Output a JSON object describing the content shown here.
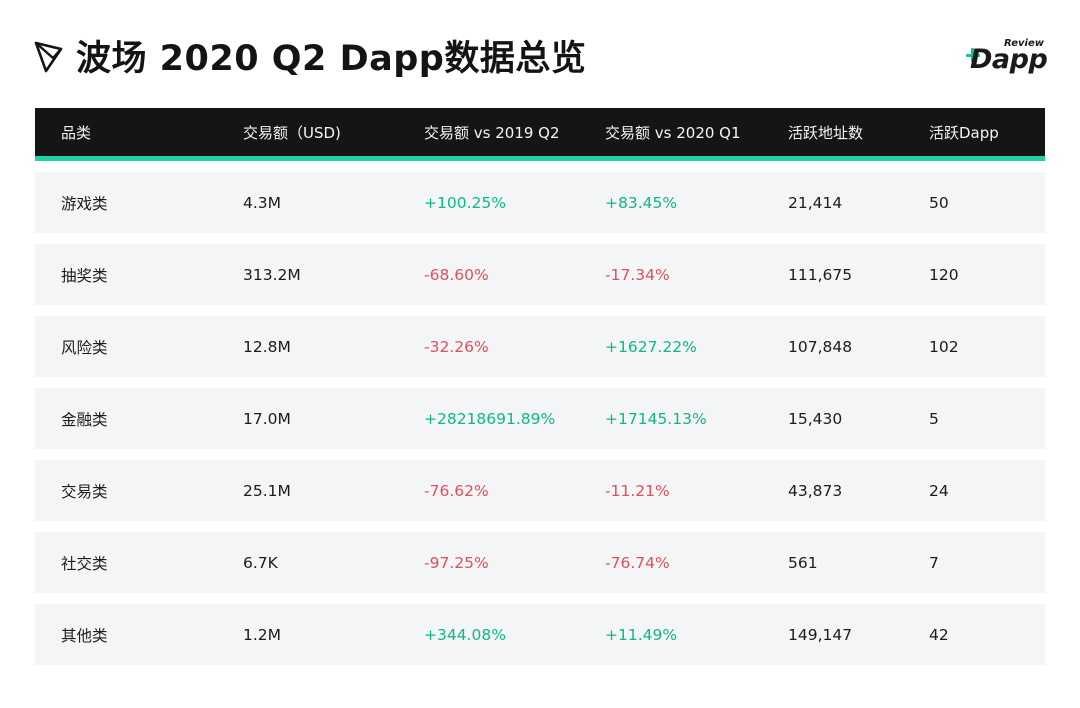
{
  "header": {
    "title": "波场 2020 Q2 Dapp数据总览",
    "logo_icon": "tron-logo-icon",
    "brand": {
      "review": "Review",
      "name": "Dapp",
      "accent_color": "#12c39a"
    }
  },
  "table": {
    "colors": {
      "header_bg": "#151515",
      "header_rule": "#1dd3a6",
      "row_bg": "#f4f5f7",
      "positive": "#10b981",
      "negative": "#e0505a"
    },
    "columns": [
      "品类",
      "交易额（USD)",
      "交易额 vs 2019 Q2",
      "交易额 vs 2020 Q1",
      "活跃地址数",
      "活跃Dapp"
    ],
    "rows": [
      {
        "category": "游戏类",
        "volume": "4.3M",
        "vs_2019q2": "+100.25%",
        "vs_2020q1": "+83.45%",
        "active_addresses": "21,414",
        "active_dapps": "50"
      },
      {
        "category": "抽奖类",
        "volume": "313.2M",
        "vs_2019q2": "-68.60%",
        "vs_2020q1": "-17.34%",
        "active_addresses": "111,675",
        "active_dapps": "120"
      },
      {
        "category": "风险类",
        "volume": "12.8M",
        "vs_2019q2": "-32.26%",
        "vs_2020q1": "+1627.22%",
        "active_addresses": "107,848",
        "active_dapps": "102"
      },
      {
        "category": "金融类",
        "volume": "17.0M",
        "vs_2019q2": "+28218691.89%",
        "vs_2020q1": "+17145.13%",
        "active_addresses": "15,430",
        "active_dapps": "5"
      },
      {
        "category": "交易类",
        "volume": "25.1M",
        "vs_2019q2": "-76.62%",
        "vs_2020q1": "-11.21%",
        "active_addresses": "43,873",
        "active_dapps": "24"
      },
      {
        "category": "社交类",
        "volume": "6.7K",
        "vs_2019q2": "-97.25%",
        "vs_2020q1": "-76.74%",
        "active_addresses": "561",
        "active_dapps": "7"
      },
      {
        "category": "其他类",
        "volume": "1.2M",
        "vs_2019q2": "+344.08%",
        "vs_2020q1": "+11.49%",
        "active_addresses": "149,147",
        "active_dapps": "42"
      }
    ]
  }
}
